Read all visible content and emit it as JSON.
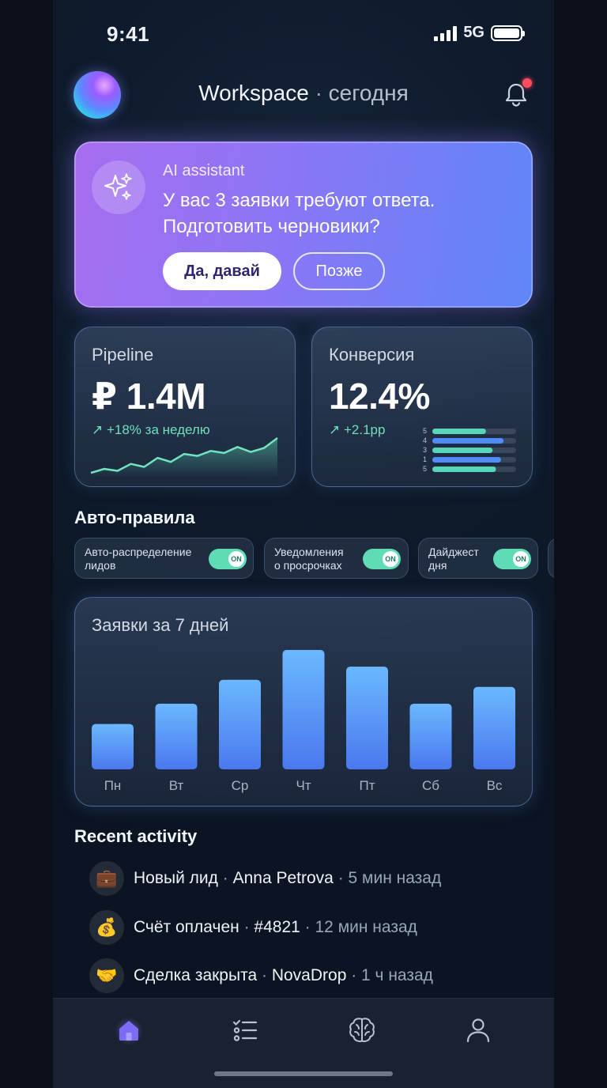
{
  "status_bar": {
    "time": "9:41",
    "network": "5G"
  },
  "header": {
    "workspace": "Workspace",
    "separator": "·",
    "period": "сегодня"
  },
  "ai_card": {
    "label": "AI assistant",
    "message_line1": "У вас 3 заявки требуют ответа.",
    "message_line2": "Подготовить черновики?",
    "primary_button": "Да, давай",
    "secondary_button": "Позже"
  },
  "pipeline": {
    "title": "Pipeline",
    "value": "₽ 1.4M",
    "delta": "↗ +18% за неделю",
    "sparkline": [
      10,
      18,
      14,
      28,
      22,
      40,
      32,
      48,
      44,
      54,
      50,
      62,
      52,
      60,
      80
    ]
  },
  "conversion": {
    "title": "Конверсия",
    "value": "12.4%",
    "delta": "↗ +2.1pp",
    "bars": [
      {
        "label": "5",
        "value": 0.64
      },
      {
        "label": "4",
        "value": 0.85
      },
      {
        "label": "3",
        "value": 0.72
      },
      {
        "label": "1",
        "value": 0.82
      },
      {
        "label": "5",
        "value": 0.76
      }
    ]
  },
  "rules": {
    "title": "Авто-правила",
    "items": [
      {
        "line1": "Авто-распределение",
        "line2": "лидов",
        "state": "ON"
      },
      {
        "line1": "Уведомления",
        "line2": "о просрочках",
        "state": "ON"
      },
      {
        "line1": "Дайджест",
        "line2": "дня",
        "state": "ON"
      }
    ]
  },
  "chart_data": {
    "type": "bar",
    "title": "Заявки за 7 дней",
    "categories": [
      "Пн",
      "Вт",
      "Ср",
      "Чт",
      "Пт",
      "Сб",
      "Вс"
    ],
    "values": [
      38,
      55,
      75,
      100,
      86,
      55,
      69
    ],
    "ylim": [
      0,
      100
    ],
    "colors": {
      "top": "#6bb8ff",
      "bottom": "#4a78ee"
    }
  },
  "activity": {
    "title": "Recent activity",
    "items": [
      {
        "icon": "briefcase-icon",
        "glyph": "💼",
        "event": "Новый лид",
        "subject": "Anna Petrova",
        "time": "5 мин назад"
      },
      {
        "icon": "money-bag-icon",
        "glyph": "💰",
        "event": "Счёт оплачен",
        "subject": "#4821",
        "time": "12 мин назад"
      },
      {
        "icon": "handshake-icon",
        "glyph": "🤝",
        "event": "Сделка закрыта",
        "subject": "NovaDrop",
        "time": "1 ч назад"
      }
    ]
  },
  "nav": {
    "items": [
      "home-icon",
      "tasks-icon",
      "brain-icon",
      "profile-icon"
    ],
    "active": "home-icon"
  },
  "colors": {
    "accent": "#7c6cf5",
    "positive": "#6fe0bd",
    "alert": "#ff4d5e"
  }
}
